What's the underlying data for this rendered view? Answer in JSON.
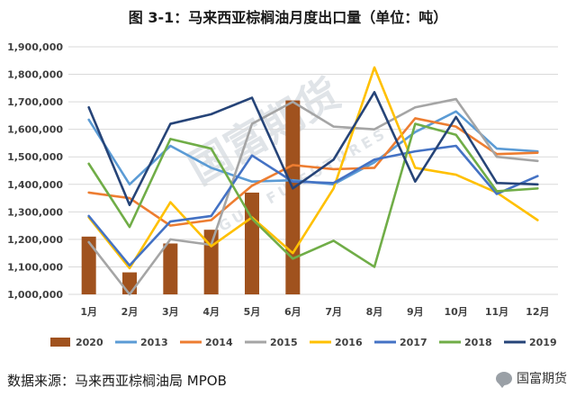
{
  "title": "图 3-1：马来西亚棕榈油月度出口量（单位：吨）",
  "source": "数据来源：马来西亚棕榈油局 MPOB",
  "brand": {
    "label": "国富期货",
    "icon": "wechat-bubble-icon"
  },
  "watermark": {
    "text": "国富期货",
    "sub": "GUO FU FUTURES"
  },
  "chart_data": {
    "type": "bar+line",
    "categories": [
      "1月",
      "2月",
      "3月",
      "4月",
      "5月",
      "6月",
      "7月",
      "8月",
      "9月",
      "10月",
      "11月",
      "12月"
    ],
    "ylim": [
      1000000,
      1900000
    ],
    "yticks": [
      1000000,
      1100000,
      1200000,
      1300000,
      1400000,
      1500000,
      1600000,
      1700000,
      1800000,
      1900000
    ],
    "ytick_labels": [
      "1,000,000",
      "1,100,000",
      "1,200,000",
      "1,300,000",
      "1,400,000",
      "1,500,000",
      "1,600,000",
      "1,700,000",
      "1,800,000",
      "1,900,000"
    ],
    "grid": true,
    "legend_position": "bottom",
    "bar_series": {
      "name": "2020",
      "color": "#a0521e",
      "values": [
        1210000,
        1080000,
        1185000,
        1235000,
        1370000,
        1705000,
        null,
        null,
        null,
        null,
        null,
        null
      ]
    },
    "series": [
      {
        "name": "2013",
        "color": "#5b9bd5",
        "values": [
          1635000,
          1400000,
          1540000,
          1460000,
          1410000,
          1415000,
          1400000,
          1480000,
          1590000,
          1665000,
          1530000,
          1520000
        ]
      },
      {
        "name": "2014",
        "color": "#ed7d31",
        "values": [
          1370000,
          1350000,
          1250000,
          1270000,
          1395000,
          1470000,
          1455000,
          1460000,
          1640000,
          1610000,
          1510000,
          1515000
        ]
      },
      {
        "name": "2015",
        "color": "#a5a5a5",
        "values": [
          1190000,
          1000000,
          1200000,
          1180000,
          1620000,
          1700000,
          1610000,
          1600000,
          1680000,
          1710000,
          1500000,
          1485000
        ]
      },
      {
        "name": "2016",
        "color": "#ffc000",
        "values": [
          1280000,
          1095000,
          1335000,
          1175000,
          1280000,
          1150000,
          1385000,
          1825000,
          1460000,
          1435000,
          1370000,
          1270000
        ]
      },
      {
        "name": "2017",
        "color": "#4472c4",
        "values": [
          1285000,
          1105000,
          1265000,
          1285000,
          1505000,
          1410000,
          1405000,
          1490000,
          1520000,
          1540000,
          1365000,
          1430000
        ]
      },
      {
        "name": "2018",
        "color": "#70ad47",
        "values": [
          1475000,
          1245000,
          1565000,
          1530000,
          1275000,
          1130000,
          1195000,
          1100000,
          1620000,
          1580000,
          1375000,
          1385000
        ]
      },
      {
        "name": "2019",
        "color": "#264478",
        "values": [
          1680000,
          1325000,
          1620000,
          1655000,
          1715000,
          1385000,
          1490000,
          1735000,
          1410000,
          1645000,
          1405000,
          1400000
        ]
      }
    ]
  }
}
